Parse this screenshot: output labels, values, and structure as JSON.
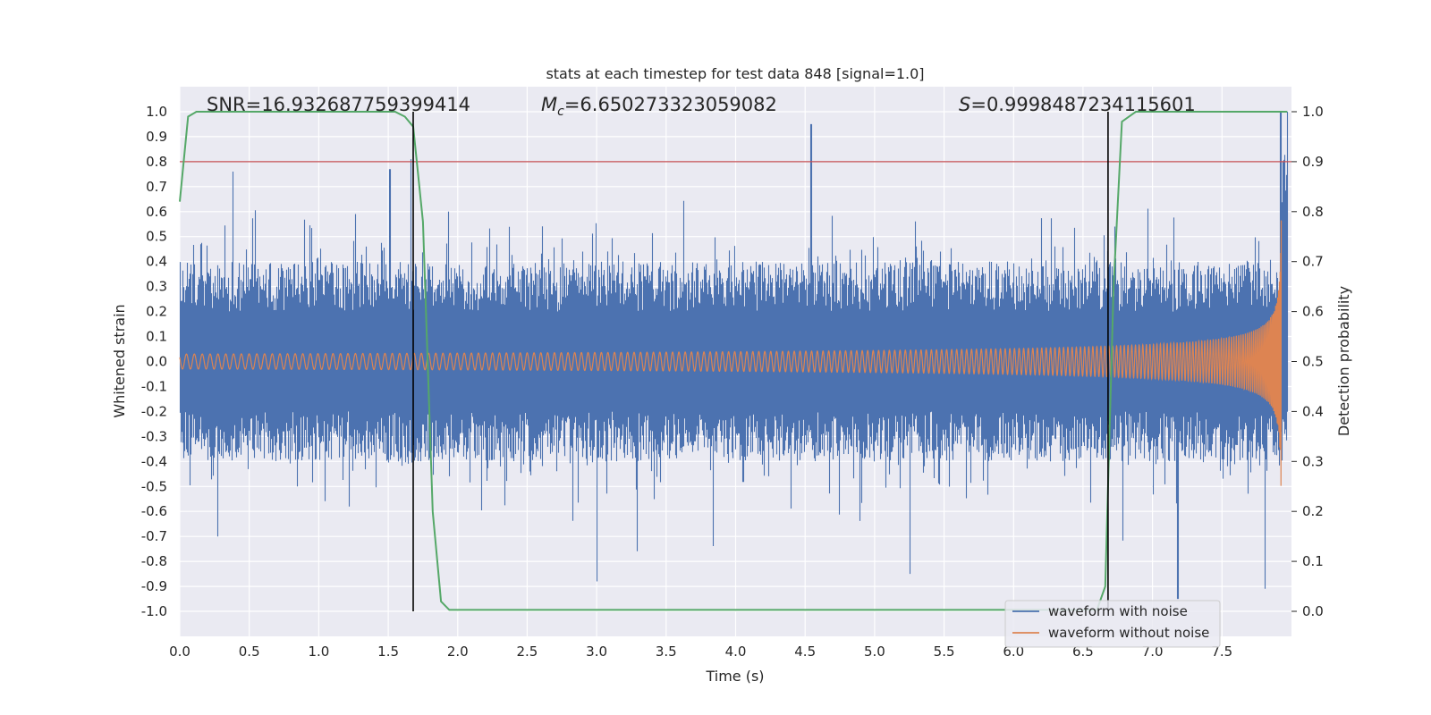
{
  "chart_data": {
    "type": "line",
    "title": "stats at each timestep for test data 848 [signal=1.0]",
    "xlabel": "Time (s)",
    "ylabel": "Whitened strain",
    "y2label": "Detection probability",
    "xlim": [
      0.0,
      8.0
    ],
    "ylim": [
      -1.1,
      1.1
    ],
    "y2lim": [
      -0.05,
      1.05
    ],
    "xticks": [
      "0.0",
      "0.5",
      "1.0",
      "1.5",
      "2.0",
      "2.5",
      "3.0",
      "3.5",
      "4.0",
      "4.5",
      "5.0",
      "5.5",
      "6.0",
      "6.5",
      "7.0",
      "7.5"
    ],
    "xtick_values": [
      0.0,
      0.5,
      1.0,
      1.5,
      2.0,
      2.5,
      3.0,
      3.5,
      4.0,
      4.5,
      5.0,
      5.5,
      6.0,
      6.5,
      7.0,
      7.5
    ],
    "yticks": [
      "1.0",
      "0.9",
      "0.8",
      "0.7",
      "0.6",
      "0.5",
      "0.4",
      "0.3",
      "0.2",
      "0.1",
      "0.0",
      "-0.1",
      "-0.2",
      "-0.3",
      "-0.4",
      "-0.5",
      "-0.6",
      "-0.7",
      "-0.8",
      "-0.9",
      "-1.0"
    ],
    "ytick_values": [
      1.0,
      0.9,
      0.8,
      0.7,
      0.6,
      0.5,
      0.4,
      0.3,
      0.2,
      0.1,
      0.0,
      -0.1,
      -0.2,
      -0.3,
      -0.4,
      -0.5,
      -0.6,
      -0.7,
      -0.8,
      -0.9,
      -1.0
    ],
    "y2ticks": [
      "1.0",
      "0.9",
      "0.8",
      "0.7",
      "0.6",
      "0.5",
      "0.4",
      "0.3",
      "0.2",
      "0.1",
      "0.0"
    ],
    "y2tick_values": [
      1.0,
      0.9,
      0.8,
      0.7,
      0.6,
      0.5,
      0.4,
      0.3,
      0.2,
      0.1,
      0.0
    ],
    "annotations": {
      "snr": "SNR=16.932687759399414",
      "mc_symbol": "M",
      "mc_sub": "c",
      "mc_value": "=6.650273323059082",
      "s_symbol": "S",
      "s_value": "=0.9998487234115601"
    },
    "threshold": {
      "value": 0.9,
      "axis": "y2",
      "color": "#c44e52"
    },
    "vlines": [
      1.68,
      6.68
    ],
    "series": [
      {
        "name": "waveform with noise",
        "color": "#4c72b0",
        "description": "whitened noisy strain, roughly within -0.75..0.8 with spikes",
        "noise_amplitude": 0.38,
        "spikes": [
          {
            "x": 0.38,
            "y": 0.76
          },
          {
            "x": 1.51,
            "y": 0.77
          },
          {
            "x": 1.66,
            "y": 0.81
          },
          {
            "x": 4.54,
            "y": 0.95
          },
          {
            "x": 7.92,
            "y": 1.0
          },
          {
            "x": 0.27,
            "y": -0.7
          },
          {
            "x": 3.0,
            "y": -0.88
          },
          {
            "x": 5.25,
            "y": -0.85
          },
          {
            "x": 7.18,
            "y": -0.95
          }
        ]
      },
      {
        "name": "waveform without noise",
        "color": "#dd8452",
        "description": "chirp signal growing in amplitude and frequency toward merger",
        "amplitude_start": 0.03,
        "amplitude_end": 0.6,
        "merger_time": 7.93
      },
      {
        "name": "detection probability",
        "color": "#55a868",
        "axis": "y2",
        "x": [
          0.0,
          0.06,
          0.12,
          1.55,
          1.62,
          1.68,
          1.75,
          1.82,
          1.88,
          1.94,
          6.6,
          6.66,
          6.72,
          6.78,
          6.88,
          7.97
        ],
        "y": [
          0.82,
          0.99,
          1.0,
          1.0,
          0.99,
          0.97,
          0.78,
          0.2,
          0.02,
          0.003,
          0.003,
          0.05,
          0.65,
          0.98,
          1.0,
          1.0
        ]
      }
    ],
    "legend": {
      "position": "lower-right",
      "entries": [
        {
          "label": "waveform with noise",
          "color": "#4c72b0"
        },
        {
          "label": "waveform without noise",
          "color": "#dd8452"
        }
      ]
    },
    "style": {
      "axes_bg": "#eaeaf2",
      "grid": true,
      "grid_color": "#ffffff",
      "vline_color": "#000000"
    }
  }
}
